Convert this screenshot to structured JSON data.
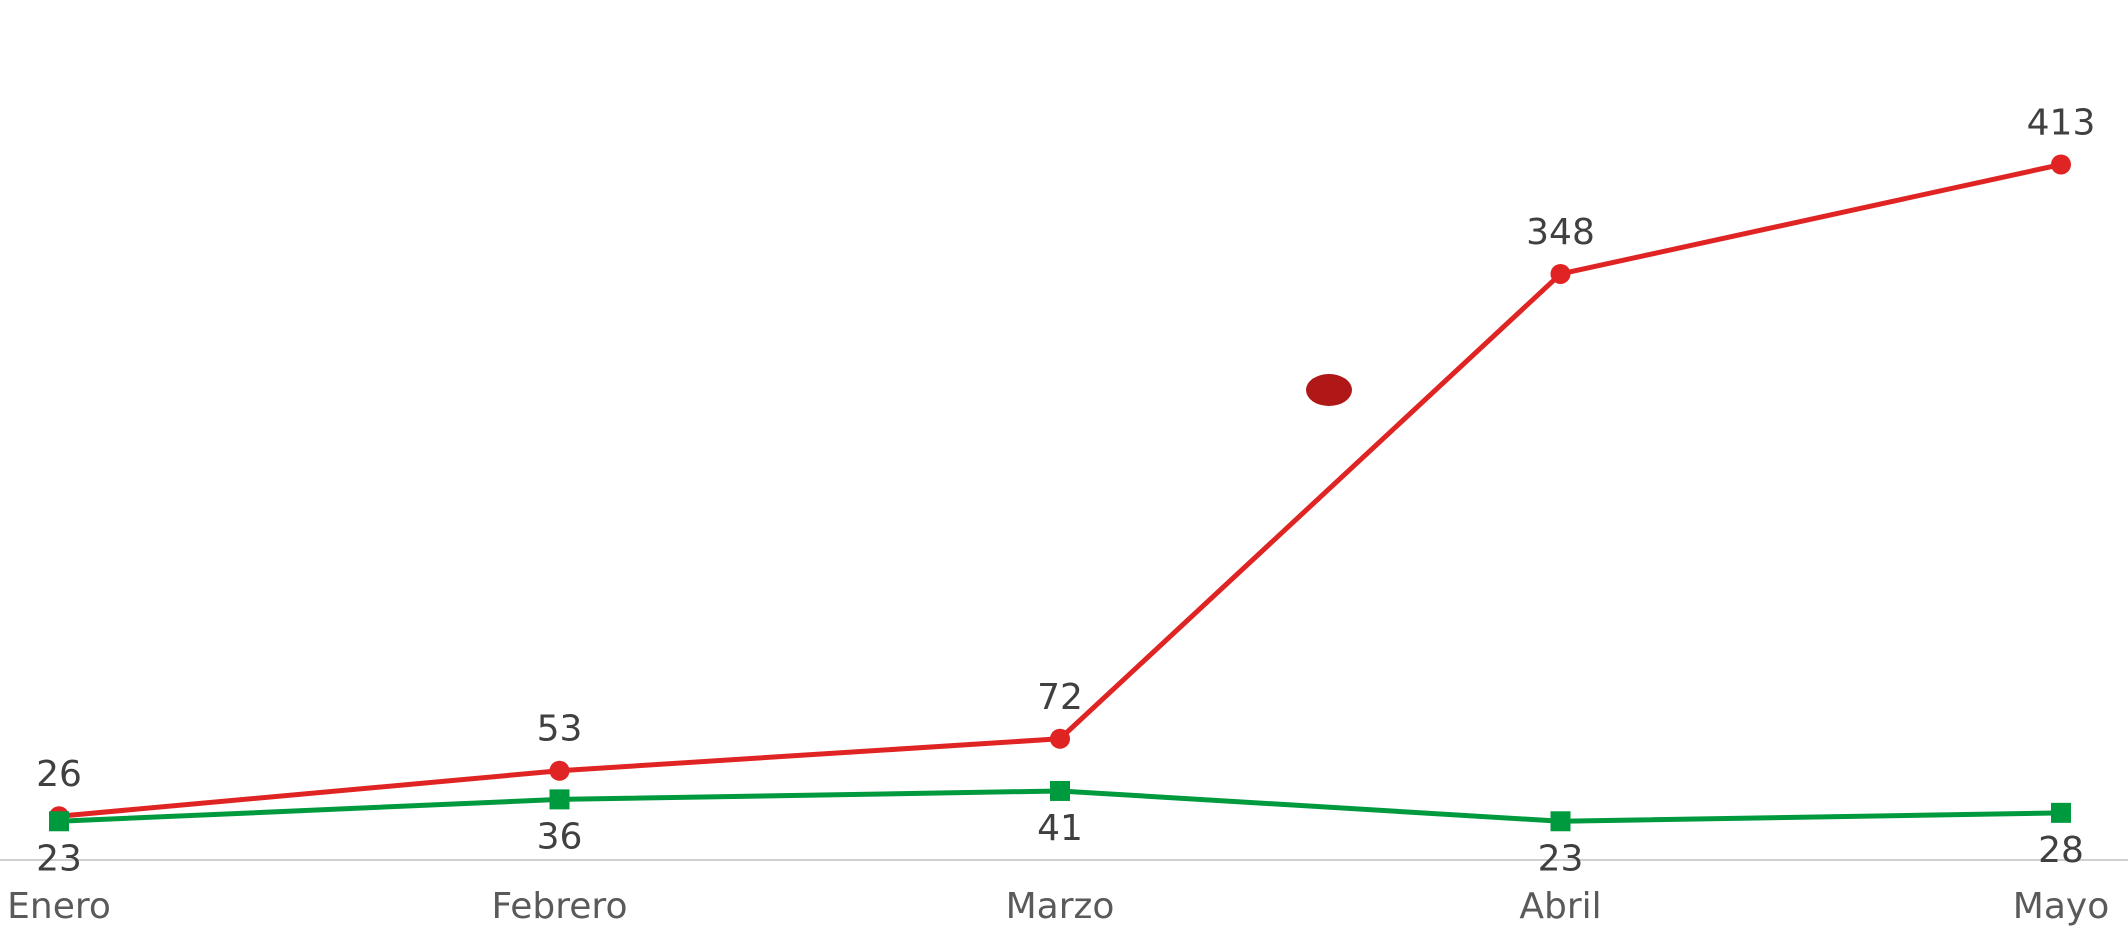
{
  "chart_data": {
    "type": "line",
    "categories": [
      "Enero",
      "Febrero",
      "Marzo",
      "Abril",
      "Mayo"
    ],
    "series": [
      {
        "values": [
          26,
          53,
          72,
          348,
          413
        ],
        "color": "#e02424",
        "marker": "circle",
        "label_position": "above"
      },
      {
        "values": [
          23,
          36,
          41,
          23,
          28
        ],
        "color": "#009a3e",
        "marker": "square",
        "label_position": "below"
      }
    ],
    "annotation_marker": {
      "shape": "ellipse",
      "color": "#b01818"
    },
    "ylim": [
      0,
      440
    ],
    "axis_color": "#d0d0d0",
    "grid": false,
    "legend": "none",
    "title": "",
    "xlabel": "",
    "ylabel": ""
  }
}
